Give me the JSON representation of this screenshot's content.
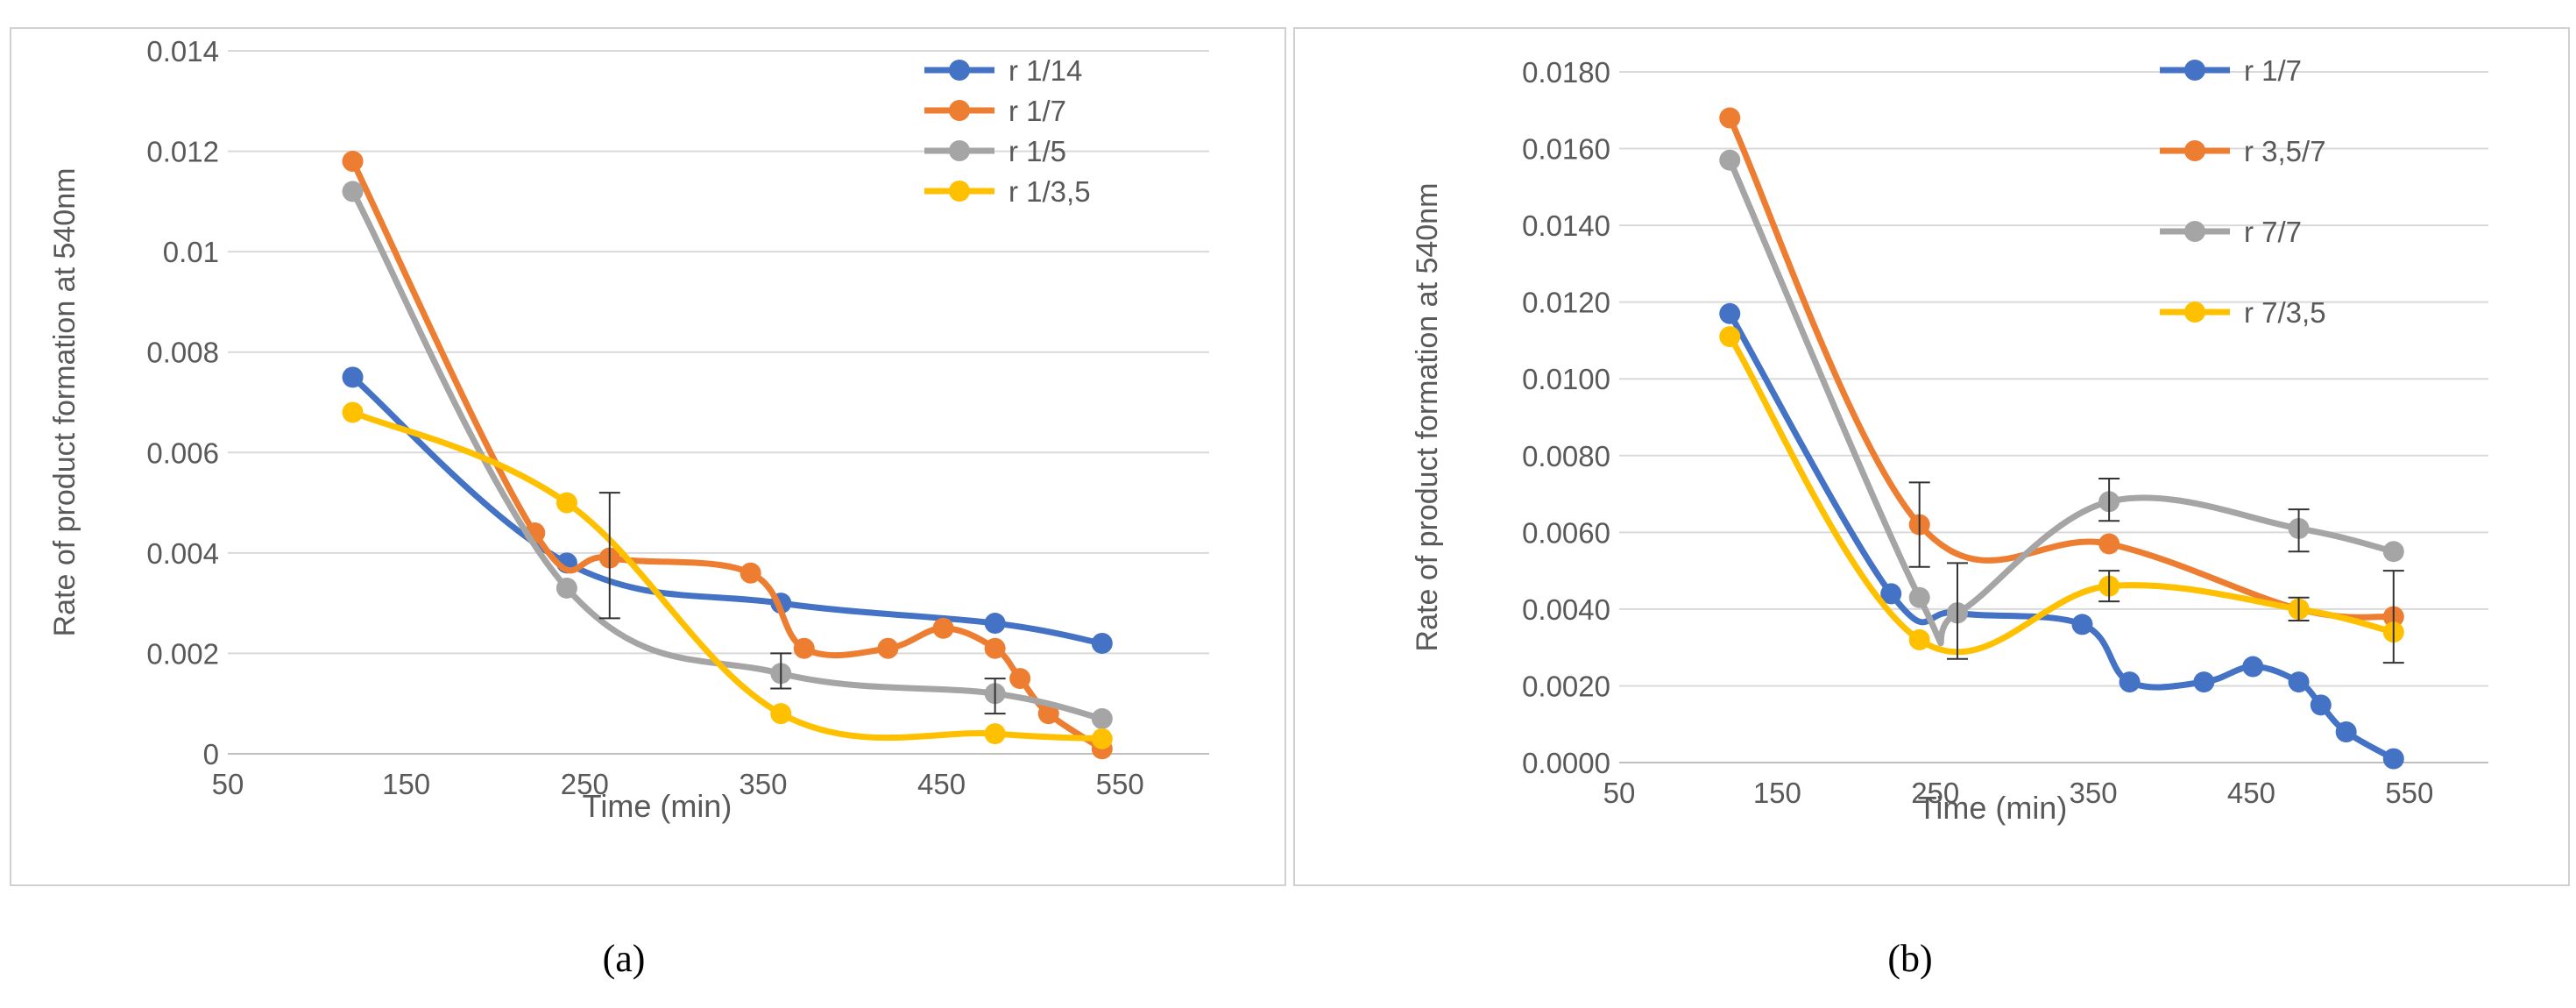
{
  "figure": {
    "caption_a": "(a)",
    "caption_b": "(b)"
  },
  "chart_data": [
    {
      "type": "line",
      "panel": "a",
      "xlabel": "Time (min)",
      "ylabel": "Rate of product formation at 540nm",
      "xlim": [
        50,
        600
      ],
      "ylim": [
        0,
        0.014
      ],
      "x_ticks": [
        50,
        150,
        250,
        350,
        450,
        550
      ],
      "y_ticks": [
        0,
        0.002,
        0.004,
        0.006,
        0.008,
        0.01,
        0.012,
        0.014
      ],
      "y_tick_labels": [
        "0",
        "0.002",
        "0.004",
        "0.006",
        "0.008",
        "0.01",
        "0.012",
        "0.014"
      ],
      "grid": true,
      "legend_position": "top-right",
      "series": [
        {
          "name": "r 1/14",
          "color": "#4472C4",
          "x": [
            120,
            240,
            360,
            480,
            540
          ],
          "y": [
            0.0075,
            0.0038,
            0.003,
            0.0026,
            0.0022
          ]
        },
        {
          "name": "r 1/7",
          "color": "#ED7D31",
          "x": [
            120,
            222,
            264,
            343,
            373,
            420,
            451,
            480,
            494,
            510,
            540
          ],
          "y": [
            0.0118,
            0.0044,
            0.0039,
            0.0036,
            0.0021,
            0.0021,
            0.0025,
            0.0021,
            0.0015,
            0.0008,
            0.0001
          ]
        },
        {
          "name": "r 1/5",
          "color": "#A5A5A5",
          "x": [
            120,
            240,
            360,
            480,
            540
          ],
          "y": [
            0.0112,
            0.0033,
            0.0016,
            0.0012,
            0.0007
          ]
        },
        {
          "name": "r 1/3,5",
          "color": "#FFC000",
          "x": [
            120,
            240,
            360,
            480,
            540
          ],
          "y": [
            0.0068,
            0.005,
            0.0008,
            0.0004,
            0.0003
          ]
        }
      ],
      "error_bars": [
        {
          "x": 264,
          "low": 0.0027,
          "high": 0.0052
        },
        {
          "x": 360,
          "low": 0.0013,
          "high": 0.002
        },
        {
          "x": 480,
          "low": 0.0008,
          "high": 0.0015
        }
      ]
    },
    {
      "type": "line",
      "panel": "b",
      "xlabel": "Time (min)",
      "ylabel": "Rate of product formation at 540nm",
      "xlim": [
        50,
        600
      ],
      "ylim": [
        0,
        0.018
      ],
      "x_ticks": [
        50,
        150,
        250,
        350,
        450,
        550
      ],
      "y_ticks": [
        0,
        0.002,
        0.004,
        0.006,
        0.008,
        0.01,
        0.012,
        0.014,
        0.016,
        0.018
      ],
      "y_tick_labels": [
        "0.0000",
        "0.0020",
        "0.0040",
        "0.0060",
        "0.0080",
        "0.0100",
        "0.0120",
        "0.0140",
        "0.0160",
        "0.0180"
      ],
      "grid": true,
      "legend_position": "top-right",
      "series": [
        {
          "name": "r 1/7",
          "color": "#4472C4",
          "x": [
            120,
            222,
            264,
            343,
            373,
            420,
            451,
            480,
            494,
            510,
            540
          ],
          "y": [
            0.0117,
            0.0044,
            0.0039,
            0.0036,
            0.0021,
            0.0021,
            0.0025,
            0.0021,
            0.0015,
            0.0008,
            0.0001
          ]
        },
        {
          "name": "r 3,5/7",
          "color": "#ED7D31",
          "x": [
            120,
            240,
            360,
            480,
            540
          ],
          "y": [
            0.0168,
            0.0062,
            0.0057,
            0.004,
            0.0038
          ]
        },
        {
          "name": "r 7/7",
          "color": "#A5A5A5",
          "x": [
            120,
            240,
            264,
            360,
            480,
            540
          ],
          "y": [
            0.0157,
            0.0043,
            0.0039,
            0.0068,
            0.0061,
            0.0055
          ]
        },
        {
          "name": "r 7/3,5",
          "color": "#FFC000",
          "x": [
            120,
            240,
            360,
            480,
            540
          ],
          "y": [
            0.0111,
            0.0032,
            0.0046,
            0.004,
            0.0034
          ]
        }
      ],
      "error_bars": [
        {
          "x": 240,
          "low": 0.0051,
          "high": 0.0073
        },
        {
          "x": 264,
          "low": 0.0027,
          "high": 0.0052
        },
        {
          "x": 360,
          "low": 0.0063,
          "high": 0.0074
        },
        {
          "x": 360,
          "low": 0.0042,
          "high": 0.005
        },
        {
          "x": 480,
          "low": 0.0055,
          "high": 0.0066
        },
        {
          "x": 480,
          "low": 0.0037,
          "high": 0.0043
        },
        {
          "x": 540,
          "low": 0.0026,
          "high": 0.005
        }
      ]
    }
  ]
}
